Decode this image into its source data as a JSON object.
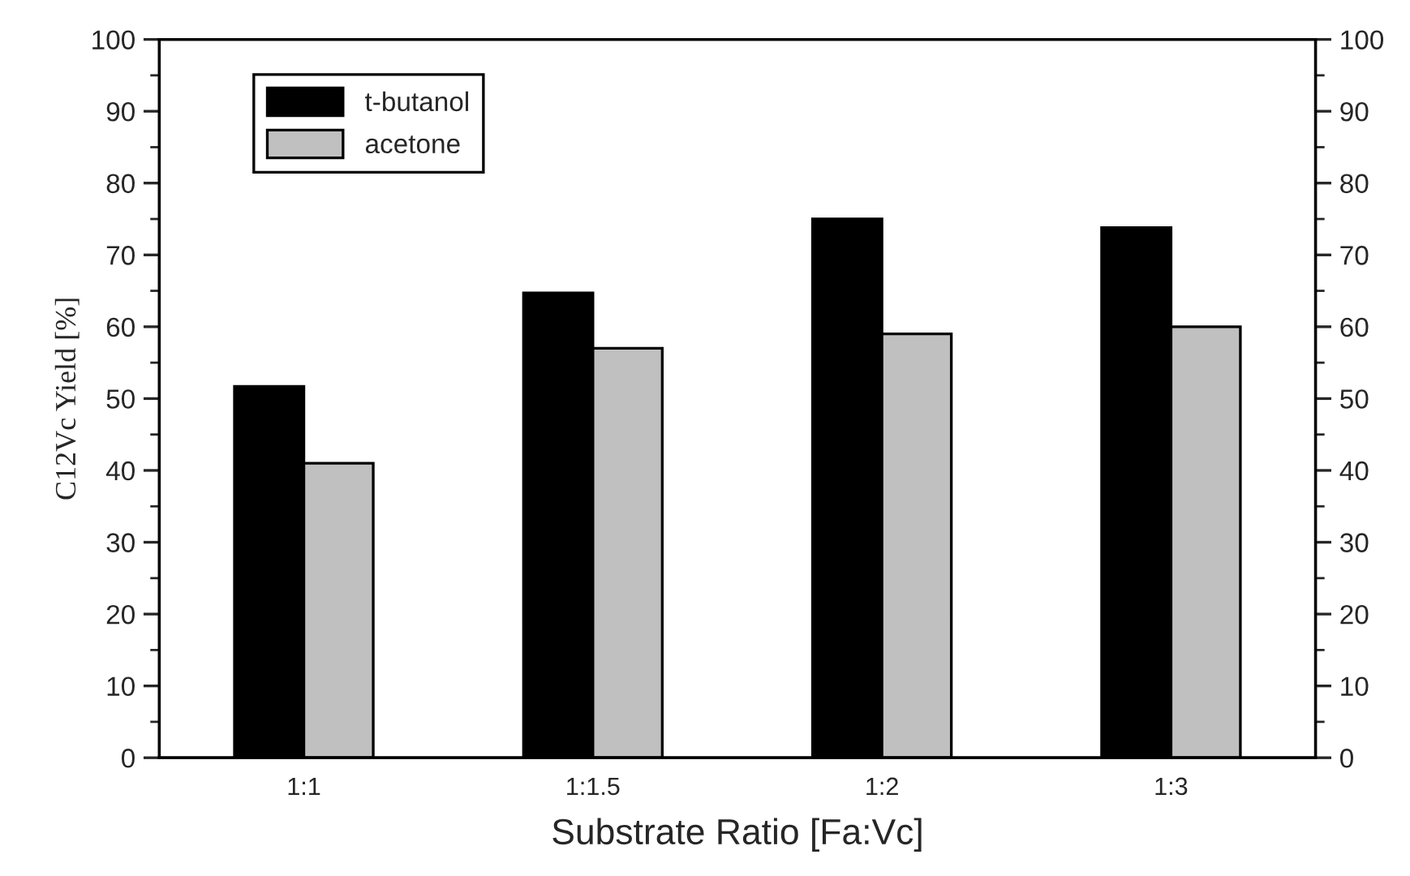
{
  "chart_data": {
    "type": "bar",
    "xlabel": "Substrate Ratio [Fa:Vc]",
    "ylabel": "C12Vc Yield [%]",
    "categories": [
      "1:1",
      "1:1.5",
      "1:2",
      "1:3"
    ],
    "series": [
      {
        "name": "t-butanol",
        "color": "#000000",
        "values": [
          51.7,
          64.7,
          75,
          73.8
        ]
      },
      {
        "name": "acetone",
        "color": "#c0c0c0",
        "values": [
          41,
          57,
          59,
          60
        ]
      }
    ],
    "ylim": [
      0,
      100
    ],
    "yticks": [
      0,
      10,
      20,
      30,
      40,
      50,
      60,
      70,
      80,
      90,
      100
    ],
    "y2lim": [
      0,
      100
    ],
    "y2ticks": [
      0,
      10,
      20,
      30,
      40,
      50,
      60,
      70,
      80,
      90,
      100
    ],
    "grid": false,
    "legend": "top left"
  }
}
